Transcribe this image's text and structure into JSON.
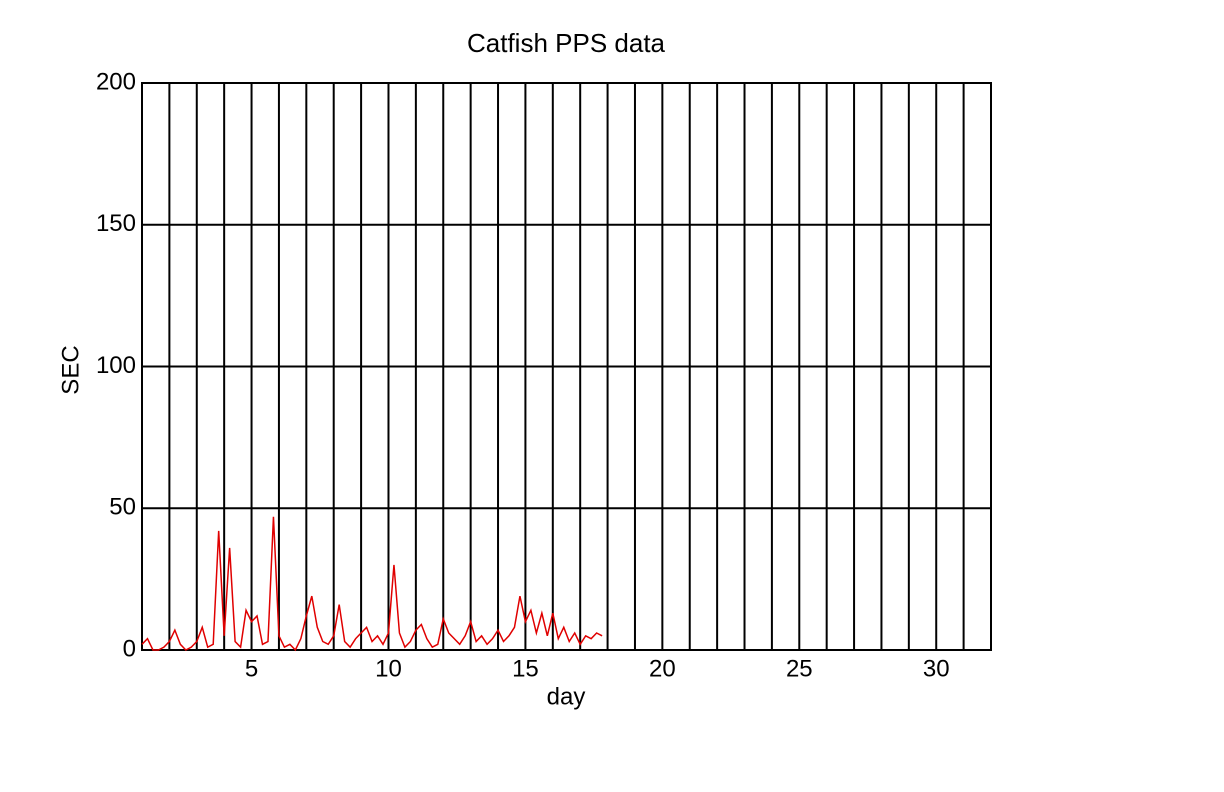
{
  "chart_data": {
    "type": "line",
    "title": "Catfish PPS data",
    "xlabel": "day",
    "ylabel": "SEC",
    "xlim": [
      1,
      32
    ],
    "ylim": [
      0,
      200
    ],
    "xticks": [
      5,
      10,
      15,
      20,
      25,
      30
    ],
    "yticks": [
      0,
      50,
      100,
      150,
      200
    ],
    "xgrid": [
      1,
      2,
      3,
      4,
      5,
      6,
      7,
      8,
      9,
      10,
      11,
      12,
      13,
      14,
      15,
      16,
      17,
      18,
      19,
      20,
      21,
      22,
      23,
      24,
      25,
      26,
      27,
      28,
      29,
      30,
      31,
      32
    ],
    "grid": true,
    "x": [
      1.0,
      1.2,
      1.4,
      1.6,
      1.8,
      2.0,
      2.2,
      2.4,
      2.6,
      2.8,
      3.0,
      3.2,
      3.4,
      3.6,
      3.8,
      4.0,
      4.2,
      4.4,
      4.6,
      4.8,
      5.0,
      5.2,
      5.4,
      5.6,
      5.8,
      6.0,
      6.2,
      6.4,
      6.6,
      6.8,
      7.0,
      7.2,
      7.4,
      7.6,
      7.8,
      8.0,
      8.2,
      8.4,
      8.6,
      8.8,
      9.0,
      9.2,
      9.4,
      9.6,
      9.8,
      10.0,
      10.2,
      10.4,
      10.6,
      10.8,
      11.0,
      11.2,
      11.4,
      11.6,
      11.8,
      12.0,
      12.2,
      12.4,
      12.6,
      12.8,
      13.0,
      13.2,
      13.4,
      13.6,
      13.8,
      14.0,
      14.2,
      14.4,
      14.6,
      14.8,
      15.0,
      15.2,
      15.4,
      15.6,
      15.8,
      16.0,
      16.2,
      16.4,
      16.6,
      16.8,
      17.0,
      17.2,
      17.4,
      17.6,
      17.8
    ],
    "series": [
      {
        "color": "#e00000",
        "values": [
          2,
          4,
          0,
          0,
          1,
          3,
          7,
          2,
          0,
          1,
          3,
          8,
          1,
          2,
          42,
          5,
          36,
          3,
          1,
          14,
          10,
          12,
          2,
          3,
          47,
          5,
          1,
          2,
          0,
          4,
          12,
          19,
          8,
          3,
          2,
          5,
          16,
          3,
          1,
          4,
          6,
          8,
          3,
          5,
          2,
          6,
          30,
          6,
          1,
          3,
          7,
          9,
          4,
          1,
          2,
          11,
          6,
          4,
          2,
          5,
          10,
          3,
          5,
          2,
          4,
          7,
          3,
          5,
          8,
          19,
          10,
          14,
          6,
          13,
          5,
          13,
          4,
          8,
          3,
          6,
          2,
          5,
          4,
          6,
          5
        ]
      }
    ]
  }
}
